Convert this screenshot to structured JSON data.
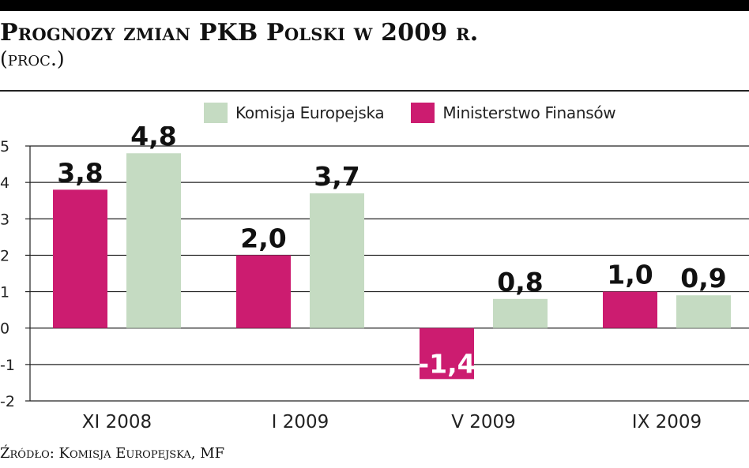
{
  "title": "Prognozy zmian PKB Polski w 2009 r.",
  "subtitle": "(proc.)",
  "source": "Źródło: Komisja Europejska, MF",
  "colors": {
    "ke": "#c5dbc2",
    "mf": "#cc1c70"
  },
  "chart_data": {
    "type": "bar",
    "title": "Prognozy zmian PKB Polski w 2009 r.",
    "ylabel": "(proc.)",
    "xlabel": "",
    "categories": [
      "XI 2008",
      "I 2009",
      "V 2009",
      "IX 2009"
    ],
    "series": [
      {
        "name": "Ministerstwo Finansów",
        "key": "mf",
        "values": [
          3.8,
          2.0,
          -1.4,
          1.0
        ],
        "labels": [
          "3,8",
          "2,0",
          "-1,4",
          "1,0"
        ]
      },
      {
        "name": "Komisja Europejska",
        "key": "ke",
        "values": [
          4.8,
          3.7,
          0.8,
          0.9
        ],
        "labels": [
          "4,8",
          "3,7",
          "0,8",
          "0,9"
        ]
      }
    ],
    "ylim": [
      -2,
      5
    ],
    "yticks": [
      "-2",
      "-1",
      "0",
      "1",
      "2",
      "3",
      "4",
      "5"
    ],
    "grid": true,
    "legend_position": "top"
  }
}
